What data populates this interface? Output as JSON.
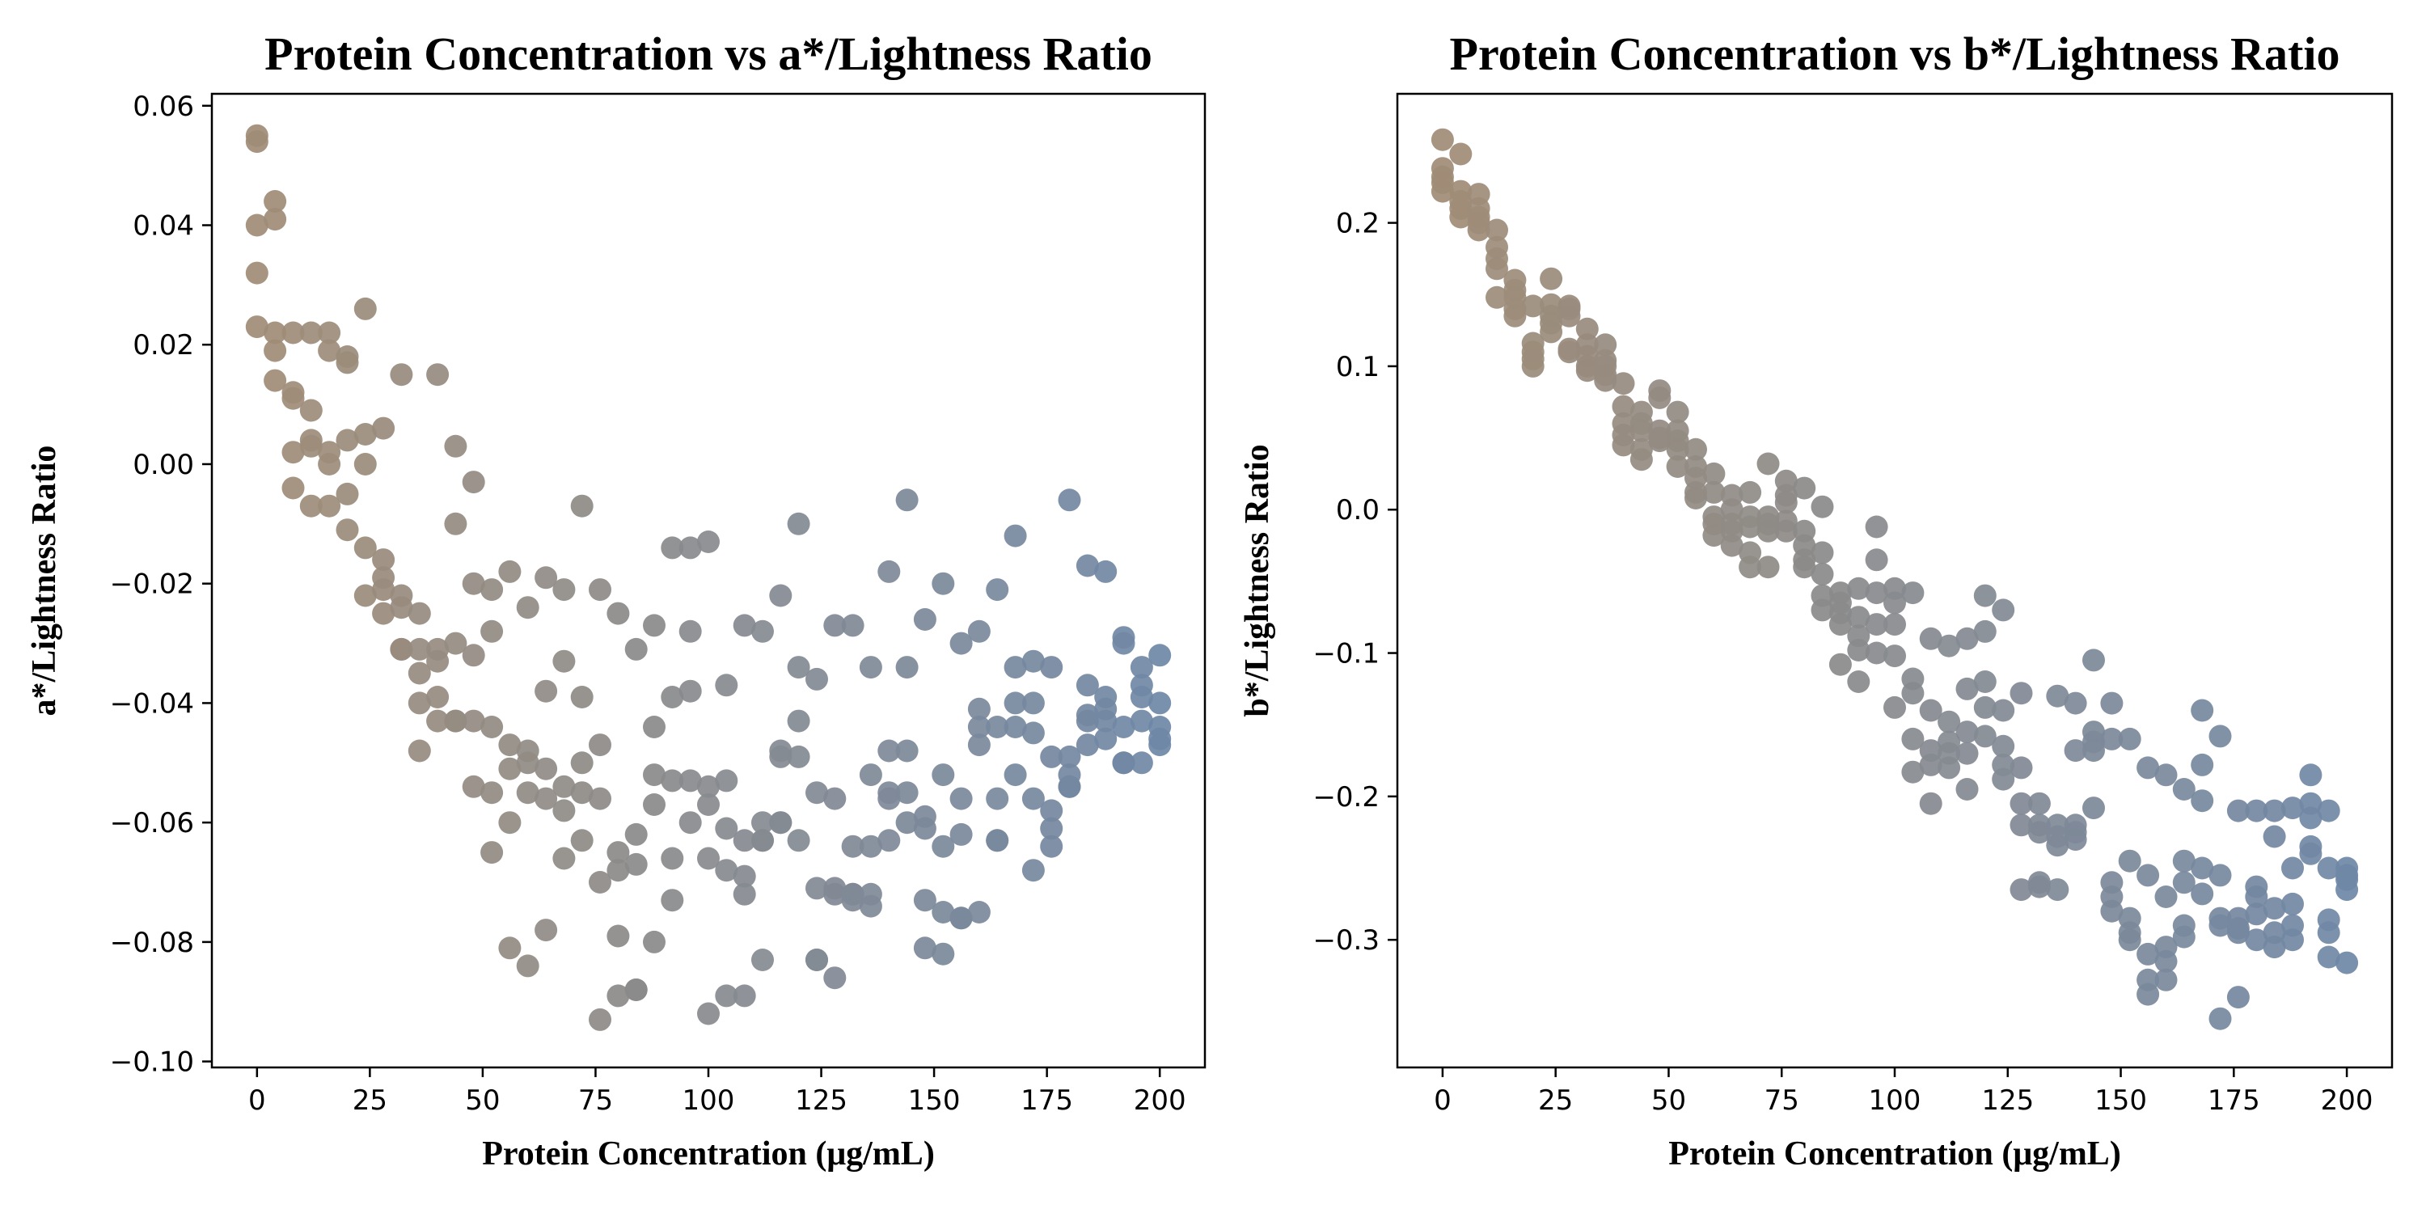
{
  "chart_data": [
    {
      "type": "scatter",
      "title": "Protein Concentration vs a*/Lightness Ratio",
      "xlabel": "Protein Concentration (μg/mL)",
      "ylabel": "a*/Lightness Ratio",
      "xlim": [
        -10,
        210
      ],
      "ylim": [
        -0.101,
        0.062
      ],
      "xticks": [
        0,
        25,
        50,
        75,
        100,
        125,
        150,
        175,
        200
      ],
      "xtick_labels": [
        "0",
        "25",
        "50",
        "75",
        "100",
        "125",
        "150",
        "175",
        "200"
      ],
      "yticks": [
        0.06,
        0.04,
        0.02,
        0.0,
        -0.02,
        -0.04,
        -0.06,
        -0.08,
        -0.1
      ],
      "ytick_labels": [
        "0.06",
        "0.04",
        "0.02",
        "0.00",
        "−0.02",
        "−0.04",
        "−0.06",
        "−0.08",
        "−0.10"
      ],
      "grid": false,
      "legend": "none",
      "color_start": "#a08c76",
      "color_end": "#6f88a6",
      "x": [
        0,
        0,
        0,
        0,
        0,
        4,
        4,
        4,
        4,
        4,
        8,
        8,
        8,
        8,
        8,
        12,
        12,
        12,
        12,
        12,
        16,
        16,
        16,
        16,
        16,
        20,
        20,
        20,
        20,
        20,
        24,
        24,
        24,
        24,
        24,
        28,
        28,
        28,
        28,
        28,
        32,
        32,
        32,
        32,
        32,
        36,
        36,
        36,
        36,
        36,
        40,
        40,
        40,
        40,
        40,
        44,
        44,
        44,
        44,
        44,
        48,
        48,
        48,
        48,
        48,
        52,
        52,
        52,
        52,
        52,
        56,
        56,
        56,
        56,
        56,
        60,
        60,
        60,
        60,
        60,
        64,
        64,
        64,
        64,
        64,
        68,
        68,
        68,
        68,
        68,
        72,
        72,
        72,
        72,
        72,
        76,
        76,
        76,
        76,
        76,
        80,
        80,
        80,
        80,
        80,
        84,
        84,
        84,
        84,
        84,
        88,
        88,
        88,
        88,
        88,
        92,
        92,
        92,
        92,
        92,
        96,
        96,
        96,
        96,
        96,
        100,
        100,
        100,
        100,
        100,
        104,
        104,
        104,
        104,
        104,
        108,
        108,
        108,
        108,
        108,
        112,
        112,
        112,
        112,
        112,
        116,
        116,
        116,
        116,
        116,
        120,
        120,
        120,
        120,
        120,
        124,
        124,
        124,
        124,
        124,
        128,
        128,
        128,
        128,
        128,
        132,
        132,
        132,
        132,
        132,
        136,
        136,
        136,
        136,
        136,
        140,
        140,
        140,
        140,
        140,
        144,
        144,
        144,
        144,
        144,
        148,
        148,
        148,
        148,
        148,
        152,
        152,
        152,
        152,
        152,
        156,
        156,
        156,
        156,
        156,
        160,
        160,
        160,
        160,
        160,
        164,
        164,
        164,
        164,
        164,
        168,
        168,
        168,
        168,
        168,
        172,
        172,
        172,
        172,
        172,
        176,
        176,
        176,
        176,
        176,
        180,
        180,
        180,
        180,
        180,
        184,
        184,
        184,
        184,
        184,
        188,
        188,
        188,
        188,
        188,
        192,
        192,
        192,
        192,
        192,
        196,
        196,
        196,
        196,
        196,
        200,
        200,
        200,
        200,
        200
      ],
      "y": [
        0.055,
        0.054,
        0.04,
        0.032,
        0.023,
        0.044,
        0.041,
        0.022,
        0.019,
        0.014,
        0.022,
        0.012,
        0.011,
        0.002,
        -0.004,
        0.022,
        0.009,
        0.004,
        0.003,
        -0.007,
        0.022,
        0.019,
        0.002,
        0.0,
        -0.007,
        0.018,
        0.017,
        0.004,
        -0.005,
        -0.011,
        0.026,
        0.005,
        0.0,
        -0.014,
        -0.022,
        0.006,
        -0.016,
        -0.019,
        -0.021,
        -0.025,
        0.015,
        -0.022,
        -0.024,
        -0.031,
        -0.031,
        -0.025,
        -0.031,
        -0.035,
        -0.04,
        -0.048,
        0.015,
        -0.031,
        -0.033,
        -0.039,
        -0.043,
        0.003,
        -0.01,
        -0.03,
        -0.043,
        -0.043,
        -0.003,
        -0.02,
        -0.032,
        -0.043,
        -0.054,
        -0.021,
        -0.028,
        -0.044,
        -0.055,
        -0.065,
        -0.018,
        -0.047,
        -0.051,
        -0.06,
        -0.081,
        -0.024,
        -0.048,
        -0.05,
        -0.055,
        -0.084,
        -0.019,
        -0.038,
        -0.051,
        -0.056,
        -0.078,
        -0.021,
        -0.033,
        -0.054,
        -0.058,
        -0.066,
        -0.007,
        -0.039,
        -0.05,
        -0.055,
        -0.063,
        -0.021,
        -0.047,
        -0.056,
        -0.07,
        -0.093,
        -0.025,
        -0.065,
        -0.068,
        -0.079,
        -0.089,
        -0.031,
        -0.062,
        -0.067,
        -0.088,
        -0.088,
        -0.027,
        -0.044,
        -0.052,
        -0.057,
        -0.08,
        -0.014,
        -0.039,
        -0.053,
        -0.066,
        -0.073,
        -0.014,
        -0.028,
        -0.038,
        -0.053,
        -0.06,
        -0.013,
        -0.054,
        -0.057,
        -0.066,
        -0.092,
        -0.037,
        -0.053,
        -0.061,
        -0.068,
        -0.089,
        -0.027,
        -0.063,
        -0.069,
        -0.072,
        -0.089,
        -0.028,
        -0.06,
        -0.063,
        -0.063,
        -0.083,
        -0.022,
        -0.048,
        -0.049,
        -0.06,
        -0.06,
        -0.01,
        -0.034,
        -0.043,
        -0.049,
        -0.063,
        -0.036,
        -0.055,
        -0.071,
        -0.083,
        -0.083,
        -0.027,
        -0.056,
        -0.071,
        -0.072,
        -0.086,
        -0.027,
        -0.064,
        -0.072,
        -0.072,
        -0.073,
        -0.034,
        -0.052,
        -0.064,
        -0.072,
        -0.074,
        -0.018,
        -0.048,
        -0.055,
        -0.056,
        -0.063,
        -0.006,
        -0.034,
        -0.048,
        -0.055,
        -0.06,
        -0.026,
        -0.059,
        -0.061,
        -0.073,
        -0.081,
        -0.02,
        -0.052,
        -0.064,
        -0.075,
        -0.082,
        -0.03,
        -0.056,
        -0.062,
        -0.076,
        -0.076,
        -0.028,
        -0.041,
        -0.044,
        -0.047,
        -0.075,
        -0.021,
        -0.044,
        -0.056,
        -0.063,
        -0.063,
        -0.012,
        -0.034,
        -0.04,
        -0.044,
        -0.052,
        -0.033,
        -0.04,
        -0.045,
        -0.056,
        -0.068,
        -0.034,
        -0.049,
        -0.058,
        -0.061,
        -0.064,
        -0.006,
        -0.049,
        -0.052,
        -0.054,
        -0.054,
        -0.017,
        -0.037,
        -0.042,
        -0.043,
        -0.047,
        -0.018,
        -0.039,
        -0.041,
        -0.043,
        -0.046,
        -0.029,
        -0.03,
        -0.044,
        -0.05,
        -0.05,
        -0.034,
        -0.037,
        -0.039,
        -0.043,
        -0.05,
        -0.032,
        -0.04,
        -0.044,
        -0.046,
        -0.047
      ]
    },
    {
      "type": "scatter",
      "title": "Protein Concentration vs b*/Lightness Ratio",
      "xlabel": "Protein Concentration (μg/mL)",
      "ylabel": "b*/Lightness Ratio",
      "xlim": [
        -10,
        210
      ],
      "ylim": [
        -0.389,
        0.29
      ],
      "xticks": [
        0,
        25,
        50,
        75,
        100,
        125,
        150,
        175,
        200
      ],
      "xtick_labels": [
        "0",
        "25",
        "50",
        "75",
        "100",
        "125",
        "150",
        "175",
        "200"
      ],
      "yticks": [
        0.2,
        0.1,
        0.0,
        -0.1,
        -0.2,
        -0.3
      ],
      "ytick_labels": [
        "0.2",
        "0.1",
        "0.0",
        "−0.1",
        "−0.2",
        "−0.3"
      ],
      "grid": false,
      "legend": "none",
      "color_start": "#a08c76",
      "color_end": "#6f88a6",
      "x": [
        0,
        0,
        0,
        0,
        0,
        4,
        4,
        4,
        4,
        4,
        8,
        8,
        8,
        8,
        8,
        12,
        12,
        12,
        12,
        12,
        16,
        16,
        16,
        16,
        16,
        20,
        20,
        20,
        20,
        20,
        24,
        24,
        24,
        24,
        24,
        28,
        28,
        28,
        28,
        28,
        32,
        32,
        32,
        32,
        32,
        36,
        36,
        36,
        36,
        36,
        40,
        40,
        40,
        40,
        40,
        44,
        44,
        44,
        44,
        44,
        48,
        48,
        48,
        48,
        48,
        52,
        52,
        52,
        52,
        52,
        56,
        56,
        56,
        56,
        56,
        60,
        60,
        60,
        60,
        60,
        64,
        64,
        64,
        64,
        64,
        68,
        68,
        68,
        68,
        68,
        72,
        72,
        72,
        72,
        72,
        76,
        76,
        76,
        76,
        76,
        80,
        80,
        80,
        80,
        80,
        84,
        84,
        84,
        84,
        84,
        88,
        88,
        88,
        88,
        88,
        92,
        92,
        92,
        92,
        92,
        96,
        96,
        96,
        96,
        96,
        100,
        100,
        100,
        100,
        100,
        104,
        104,
        104,
        104,
        104,
        108,
        108,
        108,
        108,
        108,
        112,
        112,
        112,
        112,
        112,
        116,
        116,
        116,
        116,
        116,
        120,
        120,
        120,
        120,
        120,
        124,
        124,
        124,
        124,
        124,
        128,
        128,
        128,
        128,
        128,
        132,
        132,
        132,
        132,
        132,
        136,
        136,
        136,
        136,
        136,
        140,
        140,
        140,
        140,
        140,
        144,
        144,
        144,
        144,
        144,
        148,
        148,
        148,
        148,
        148,
        152,
        152,
        152,
        152,
        152,
        156,
        156,
        156,
        156,
        156,
        160,
        160,
        160,
        160,
        160,
        164,
        164,
        164,
        164,
        164,
        168,
        168,
        168,
        168,
        168,
        172,
        172,
        172,
        172,
        172,
        176,
        176,
        176,
        176,
        176,
        180,
        180,
        180,
        180,
        180,
        184,
        184,
        184,
        184,
        184,
        188,
        188,
        188,
        188,
        188,
        192,
        192,
        192,
        192,
        192,
        196,
        196,
        196,
        196,
        196,
        200,
        200,
        200,
        200,
        200
      ],
      "y": [
        0.258,
        0.238,
        0.232,
        0.228,
        0.222,
        0.248,
        0.222,
        0.215,
        0.21,
        0.204,
        0.22,
        0.21,
        0.204,
        0.2,
        0.195,
        0.195,
        0.183,
        0.175,
        0.168,
        0.148,
        0.16,
        0.153,
        0.148,
        0.14,
        0.135,
        0.142,
        0.116,
        0.11,
        0.105,
        0.1,
        0.161,
        0.143,
        0.135,
        0.13,
        0.124,
        0.142,
        0.14,
        0.135,
        0.112,
        0.11,
        0.126,
        0.115,
        0.107,
        0.1,
        0.097,
        0.115,
        0.104,
        0.1,
        0.094,
        0.09,
        0.088,
        0.072,
        0.06,
        0.052,
        0.045,
        0.068,
        0.06,
        0.055,
        0.042,
        0.035,
        0.083,
        0.078,
        0.055,
        0.05,
        0.048,
        0.068,
        0.055,
        0.048,
        0.042,
        0.03,
        0.042,
        0.03,
        0.022,
        0.012,
        0.008,
        0.025,
        0.012,
        -0.005,
        -0.01,
        -0.018,
        0.01,
        0.0,
        -0.01,
        -0.015,
        -0.025,
        0.012,
        -0.005,
        -0.012,
        -0.03,
        -0.04,
        0.032,
        -0.005,
        -0.01,
        -0.015,
        -0.04,
        0.02,
        0.01,
        0.005,
        -0.008,
        -0.015,
        0.015,
        -0.015,
        -0.025,
        -0.035,
        -0.04,
        0.002,
        -0.03,
        -0.045,
        -0.06,
        -0.07,
        -0.058,
        -0.065,
        -0.072,
        -0.08,
        -0.108,
        -0.055,
        -0.075,
        -0.088,
        -0.098,
        -0.12,
        -0.012,
        -0.035,
        -0.058,
        -0.08,
        -0.1,
        -0.055,
        -0.065,
        -0.08,
        -0.102,
        -0.138,
        -0.058,
        -0.118,
        -0.128,
        -0.16,
        -0.183,
        -0.09,
        -0.14,
        -0.168,
        -0.178,
        -0.205,
        -0.095,
        -0.148,
        -0.162,
        -0.17,
        -0.18,
        -0.09,
        -0.125,
        -0.155,
        -0.17,
        -0.195,
        -0.06,
        -0.085,
        -0.12,
        -0.138,
        -0.158,
        -0.07,
        -0.14,
        -0.165,
        -0.178,
        -0.188,
        -0.128,
        -0.18,
        -0.205,
        -0.22,
        -0.265,
        -0.205,
        -0.22,
        -0.225,
        -0.26,
        -0.263,
        -0.13,
        -0.22,
        -0.228,
        -0.234,
        -0.265,
        -0.135,
        -0.168,
        -0.22,
        -0.225,
        -0.23,
        -0.105,
        -0.155,
        -0.162,
        -0.168,
        -0.208,
        -0.135,
        -0.16,
        -0.26,
        -0.27,
        -0.28,
        -0.16,
        -0.245,
        -0.285,
        -0.295,
        -0.3,
        -0.18,
        -0.255,
        -0.31,
        -0.328,
        -0.338,
        -0.185,
        -0.27,
        -0.305,
        -0.315,
        -0.328,
        -0.195,
        -0.245,
        -0.26,
        -0.29,
        -0.298,
        -0.14,
        -0.178,
        -0.203,
        -0.25,
        -0.268,
        -0.158,
        -0.255,
        -0.285,
        -0.29,
        -0.355,
        -0.21,
        -0.285,
        -0.292,
        -0.295,
        -0.34,
        -0.21,
        -0.263,
        -0.27,
        -0.282,
        -0.3,
        -0.21,
        -0.228,
        -0.278,
        -0.295,
        -0.305,
        -0.208,
        -0.25,
        -0.275,
        -0.29,
        -0.3,
        -0.185,
        -0.205,
        -0.215,
        -0.235,
        -0.24,
        -0.21,
        -0.25,
        -0.286,
        -0.295,
        -0.312,
        -0.25,
        -0.255,
        -0.258,
        -0.265,
        -0.316
      ]
    }
  ]
}
